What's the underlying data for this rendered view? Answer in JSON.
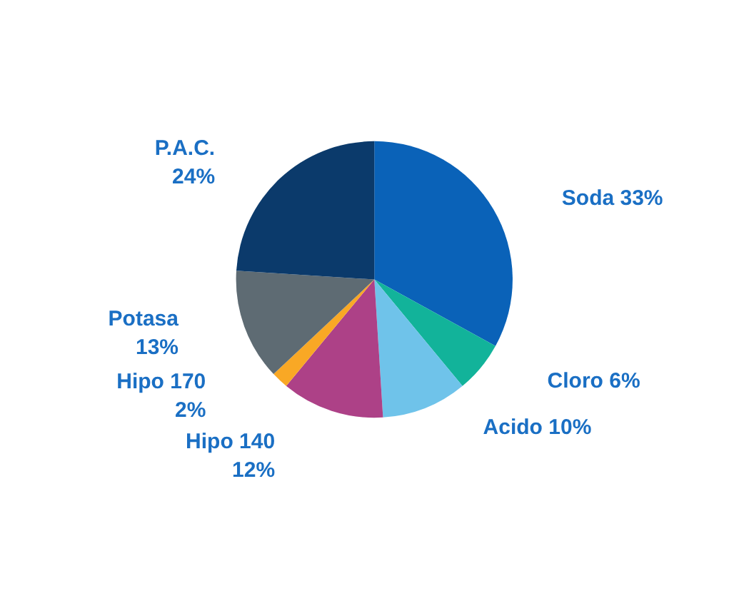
{
  "chart_data": {
    "type": "pie",
    "categories": [
      "Soda",
      "Cloro",
      "Acido",
      "Hipo 140",
      "Hipo 170",
      "Potasa",
      "P.A.C."
    ],
    "values": [
      33,
      6,
      10,
      12,
      2,
      13,
      24
    ],
    "value_labels": [
      "33%",
      "6%",
      "10%",
      "12%",
      "2%",
      "13%",
      "24%"
    ],
    "colors": [
      "#0a62b8",
      "#12b39a",
      "#6fc3ea",
      "#ad4187",
      "#f9a825",
      "#5e6b73",
      "#0b3a6b"
    ],
    "legend": false
  }
}
